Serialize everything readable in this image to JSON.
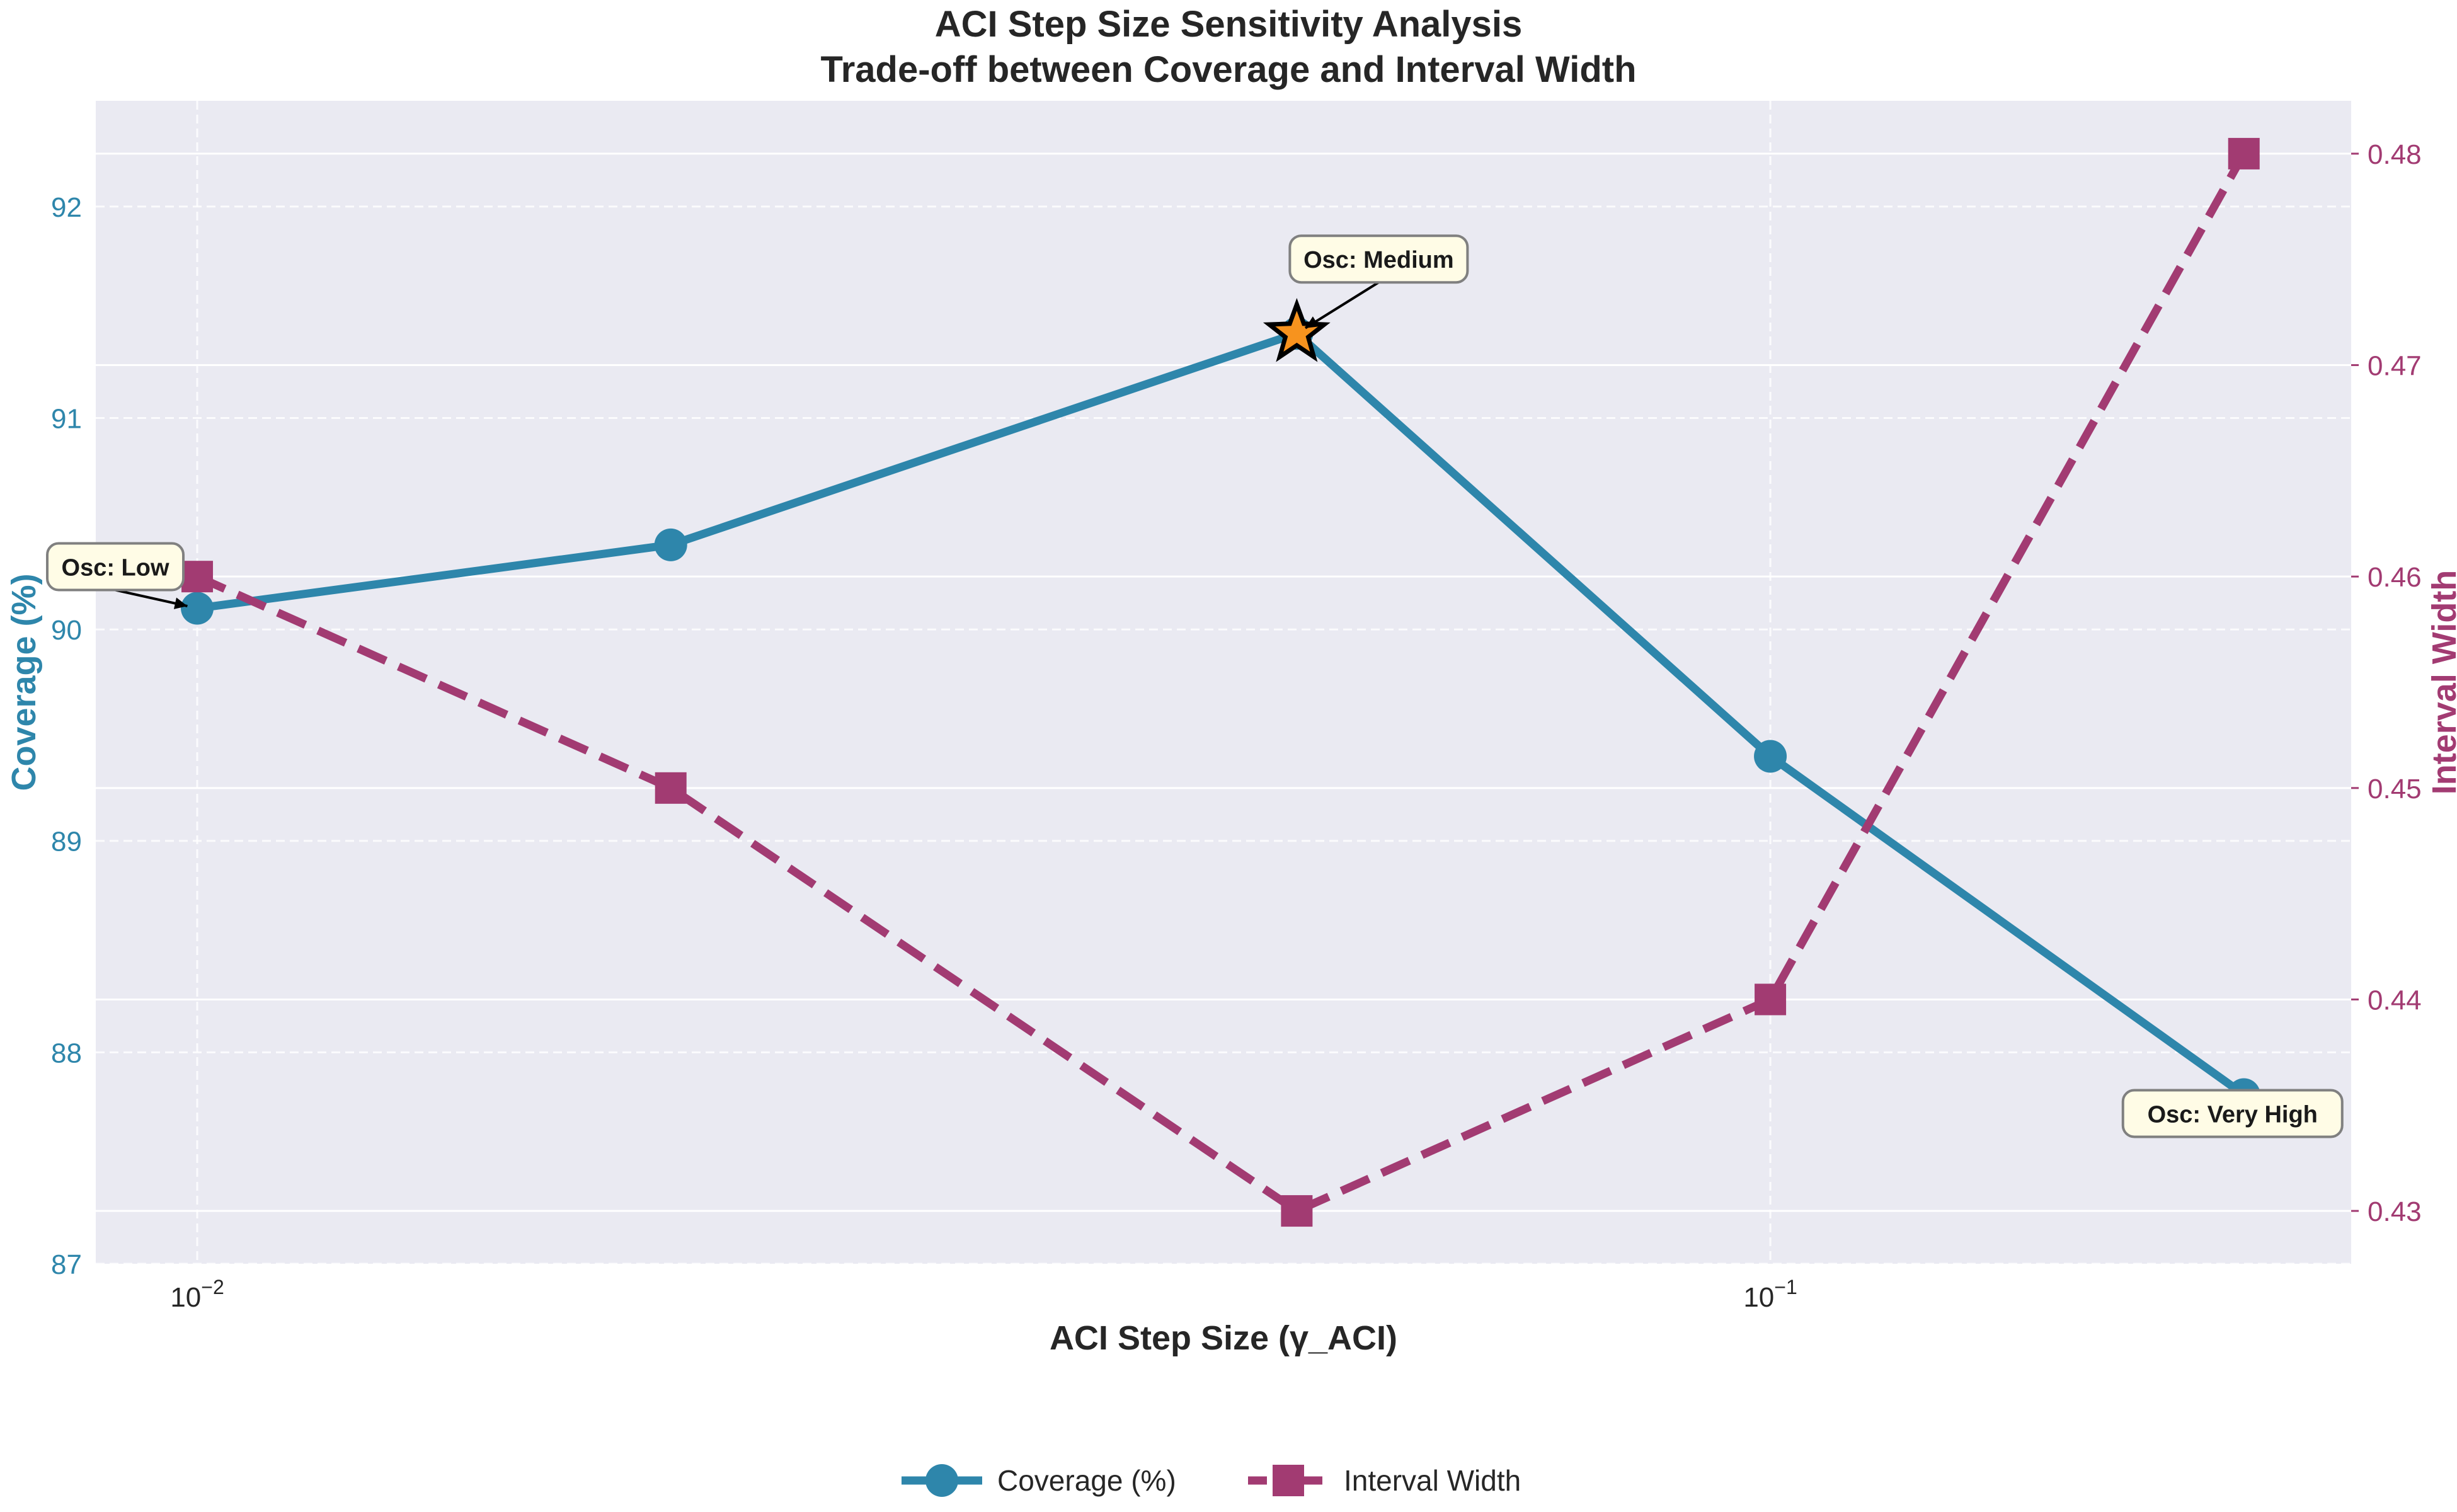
{
  "chart_data": {
    "type": "line",
    "title": "ACI Step Size Sensitivity Analysis",
    "subtitle": "Trade-off between Coverage and Interval Width",
    "xlabel": "ACI Step Size (γ_ACI)",
    "x_scale": "log",
    "x": [
      0.01,
      0.02,
      0.05,
      0.1,
      0.2
    ],
    "x_ticks": [
      {
        "value": 0.01,
        "base": "10",
        "exp": "−2"
      },
      {
        "value": 0.1,
        "base": "10",
        "exp": "−1"
      }
    ],
    "xlim": [
      0.00862,
      0.234
    ],
    "y_left": {
      "label": "Coverage (%)",
      "ylim": [
        87,
        92.5
      ],
      "ticks": [
        87,
        88,
        89,
        90,
        91,
        92
      ],
      "color": "#2e86ab"
    },
    "y_right": {
      "label": "Interval Width",
      "ylim": [
        0.4275,
        0.4825
      ],
      "ticks": [
        0.43,
        0.44,
        0.45,
        0.46,
        0.47,
        0.48
      ],
      "color": "#a23b72"
    },
    "series": [
      {
        "name": "Coverage (%)",
        "axis": "left",
        "values": [
          90.1,
          90.4,
          91.4,
          89.4,
          87.8
        ],
        "color": "#2e86ab",
        "marker": "circle",
        "linestyle": "solid"
      },
      {
        "name": "Interval Width",
        "axis": "right",
        "values": [
          0.46,
          0.45,
          0.43,
          0.44,
          0.48
        ],
        "color": "#a23b72",
        "marker": "square",
        "linestyle": "dashed"
      }
    ],
    "highlight": {
      "x": 0.05,
      "y": 91.4,
      "marker": "star",
      "color": "#f7931e"
    },
    "annotations": [
      {
        "text": "Osc: Low",
        "x": 0.01,
        "y": 90.1
      },
      {
        "text": "Osc: Medium",
        "x": 0.05,
        "y": 91.4
      },
      {
        "text": "Osc: Very High",
        "x": 0.2,
        "y": 87.8
      }
    ],
    "legend_position": "bottom-center",
    "grid": true,
    "plot_background": "#eaeaf2"
  }
}
